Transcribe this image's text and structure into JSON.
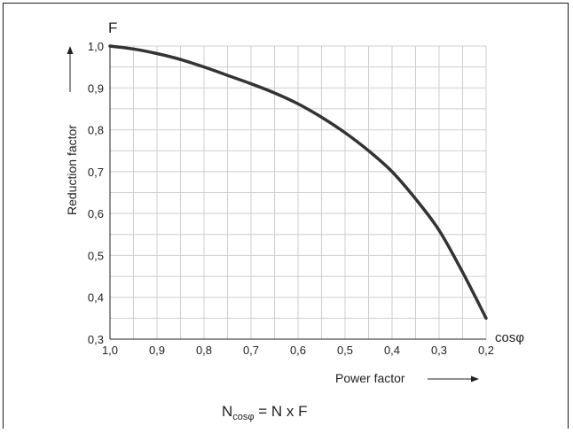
{
  "chart_data": {
    "type": "line",
    "title": "",
    "xlabel": "Power factor",
    "ylabel": "Reduction factor",
    "y_symbol": "F",
    "x_symbol": "cosφ",
    "xlim": [
      1.0,
      0.2
    ],
    "ylim": [
      0.3,
      1.0
    ],
    "x_reversed": true,
    "x_ticks": [
      "1,0",
      "0,9",
      "0,8",
      "0,7",
      "0,6",
      "0,5",
      "0,4",
      "0,3",
      "0,2"
    ],
    "y_ticks": [
      "0,3",
      "0,4",
      "0,5",
      "0,6",
      "0,7",
      "0,8",
      "0,9",
      "1,0"
    ],
    "grid": true,
    "series": [
      {
        "x": [
          1.0,
          0.95,
          0.9,
          0.85,
          0.8,
          0.75,
          0.7,
          0.65,
          0.6,
          0.55,
          0.5,
          0.45,
          0.4,
          0.35,
          0.3,
          0.25,
          0.2
        ],
        "y": [
          1.0,
          0.993,
          0.982,
          0.968,
          0.95,
          0.93,
          0.91,
          0.888,
          0.862,
          0.83,
          0.793,
          0.75,
          0.7,
          0.635,
          0.56,
          0.46,
          0.35
        ]
      }
    ]
  },
  "formula": {
    "lhs": "N",
    "lhs_subscript": "cosφ",
    "rhs": " = N x F"
  }
}
